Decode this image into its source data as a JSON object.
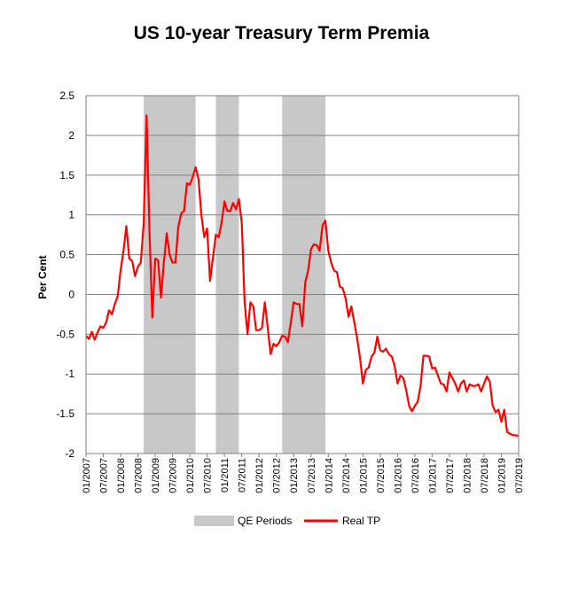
{
  "chart_data": {
    "type": "line",
    "title": "US 10-year Treasury Term Premia",
    "xlabel": "",
    "ylabel": "Per Cent",
    "ylim": [
      -2,
      2.5
    ],
    "yticks": [
      2.5,
      2,
      1.5,
      1,
      0.5,
      0,
      -0.5,
      -1,
      -1.5,
      -2
    ],
    "ytick_labels": [
      "2.5",
      "2",
      "1.5",
      "1",
      "0.5",
      "0",
      "-0.5",
      "-1",
      "-1.5",
      "-2"
    ],
    "xlim": [
      "2007-01",
      "2019-07"
    ],
    "xtick_labels": [
      "01/2007",
      "07/2007",
      "01/2008",
      "07/2008",
      "01/2009",
      "07/2009",
      "01/2010",
      "07/2010",
      "01/2011",
      "07/2011",
      "01/2012",
      "07/2012",
      "01/2013",
      "07/2013",
      "01/2014",
      "07/2014",
      "01/2015",
      "07/2015",
      "01/2016",
      "07/2016",
      "01/2017",
      "07/2017",
      "01/2018",
      "07/2018",
      "01/2019",
      "07/2019"
    ],
    "grid": true,
    "legend_position": "bottom",
    "colors": {
      "series": "#ff0000",
      "shading": "#c8c8c8"
    },
    "shaded_regions": {
      "name": "QE Periods",
      "ranges": [
        [
          "2008-09",
          "2010-03"
        ],
        [
          "2010-10",
          "2011-06"
        ],
        [
          "2012-09",
          "2013-12"
        ]
      ]
    },
    "series": [
      {
        "name": "Real TP",
        "points": [
          [
            "2007-01",
            -0.52
          ],
          [
            "2007-02",
            -0.56
          ],
          [
            "2007-03",
            -0.47
          ],
          [
            "2007-04",
            -0.57
          ],
          [
            "2007-05",
            -0.48
          ],
          [
            "2007-06",
            -0.4
          ],
          [
            "2007-07",
            -0.42
          ],
          [
            "2007-08",
            -0.35
          ],
          [
            "2007-09",
            -0.2
          ],
          [
            "2007-10",
            -0.25
          ],
          [
            "2007-11",
            -0.12
          ],
          [
            "2007-12",
            -0.02
          ],
          [
            "2008-01",
            0.3
          ],
          [
            "2008-02",
            0.55
          ],
          [
            "2008-03",
            0.86
          ],
          [
            "2008-04",
            0.45
          ],
          [
            "2008-05",
            0.42
          ],
          [
            "2008-06",
            0.23
          ],
          [
            "2008-07",
            0.35
          ],
          [
            "2008-08",
            0.4
          ],
          [
            "2008-09",
            0.9
          ],
          [
            "2008-10",
            2.25
          ],
          [
            "2008-11",
            0.8
          ],
          [
            "2008-12",
            -0.29
          ],
          [
            "2009-01",
            0.45
          ],
          [
            "2009-02",
            0.43
          ],
          [
            "2009-03",
            -0.04
          ],
          [
            "2009-04",
            0.4
          ],
          [
            "2009-05",
            0.77
          ],
          [
            "2009-06",
            0.5
          ],
          [
            "2009-07",
            0.4
          ],
          [
            "2009-08",
            0.4
          ],
          [
            "2009-09",
            0.85
          ],
          [
            "2009-10",
            1.02
          ],
          [
            "2009-11",
            1.05
          ],
          [
            "2009-12",
            1.4
          ],
          [
            "2010-01",
            1.38
          ],
          [
            "2010-02",
            1.48
          ],
          [
            "2010-03",
            1.6
          ],
          [
            "2010-04",
            1.45
          ],
          [
            "2010-05",
            1.0
          ],
          [
            "2010-06",
            0.72
          ],
          [
            "2010-07",
            0.83
          ],
          [
            "2010-08",
            0.17
          ],
          [
            "2010-09",
            0.45
          ],
          [
            "2010-10",
            0.75
          ],
          [
            "2010-11",
            0.72
          ],
          [
            "2010-12",
            0.9
          ],
          [
            "2011-01",
            1.17
          ],
          [
            "2011-02",
            1.05
          ],
          [
            "2011-03",
            1.05
          ],
          [
            "2011-04",
            1.15
          ],
          [
            "2011-05",
            1.07
          ],
          [
            "2011-06",
            1.2
          ],
          [
            "2011-07",
            0.9
          ],
          [
            "2011-08",
            -0.1
          ],
          [
            "2011-09",
            -0.5
          ],
          [
            "2011-10",
            -0.1
          ],
          [
            "2011-11",
            -0.15
          ],
          [
            "2011-12",
            -0.45
          ],
          [
            "2012-01",
            -0.45
          ],
          [
            "2012-02",
            -0.42
          ],
          [
            "2012-03",
            -0.1
          ],
          [
            "2012-04",
            -0.42
          ],
          [
            "2012-05",
            -0.75
          ],
          [
            "2012-06",
            -0.62
          ],
          [
            "2012-07",
            -0.65
          ],
          [
            "2012-08",
            -0.6
          ],
          [
            "2012-09",
            -0.52
          ],
          [
            "2012-10",
            -0.53
          ],
          [
            "2012-11",
            -0.6
          ],
          [
            "2012-12",
            -0.35
          ],
          [
            "2013-01",
            -0.1
          ],
          [
            "2013-02",
            -0.12
          ],
          [
            "2013-03",
            -0.12
          ],
          [
            "2013-04",
            -0.4
          ],
          [
            "2013-05",
            0.15
          ],
          [
            "2013-06",
            0.3
          ],
          [
            "2013-07",
            0.57
          ],
          [
            "2013-08",
            0.63
          ],
          [
            "2013-09",
            0.62
          ],
          [
            "2013-10",
            0.55
          ],
          [
            "2013-11",
            0.87
          ],
          [
            "2013-12",
            0.93
          ],
          [
            "2014-01",
            0.55
          ],
          [
            "2014-02",
            0.4
          ],
          [
            "2014-03",
            0.3
          ],
          [
            "2014-04",
            0.28
          ],
          [
            "2014-05",
            0.1
          ],
          [
            "2014-06",
            0.08
          ],
          [
            "2014-07",
            -0.05
          ],
          [
            "2014-08",
            -0.28
          ],
          [
            "2014-09",
            -0.15
          ],
          [
            "2014-10",
            -0.35
          ],
          [
            "2014-11",
            -0.55
          ],
          [
            "2014-12",
            -0.8
          ],
          [
            "2015-01",
            -1.12
          ],
          [
            "2015-02",
            -0.95
          ],
          [
            "2015-03",
            -0.92
          ],
          [
            "2015-04",
            -0.78
          ],
          [
            "2015-05",
            -0.73
          ],
          [
            "2015-06",
            -0.53
          ],
          [
            "2015-07",
            -0.7
          ],
          [
            "2015-08",
            -0.72
          ],
          [
            "2015-09",
            -0.68
          ],
          [
            "2015-10",
            -0.75
          ],
          [
            "2015-11",
            -0.78
          ],
          [
            "2015-12",
            -0.9
          ],
          [
            "2016-01",
            -1.12
          ],
          [
            "2016-02",
            -1.02
          ],
          [
            "2016-03",
            -1.05
          ],
          [
            "2016-04",
            -1.2
          ],
          [
            "2016-05",
            -1.4
          ],
          [
            "2016-06",
            -1.47
          ],
          [
            "2016-07",
            -1.4
          ],
          [
            "2016-08",
            -1.35
          ],
          [
            "2016-09",
            -1.15
          ],
          [
            "2016-10",
            -0.77
          ],
          [
            "2016-11",
            -0.77
          ],
          [
            "2016-12",
            -0.78
          ],
          [
            "2017-01",
            -0.93
          ],
          [
            "2017-02",
            -0.92
          ],
          [
            "2017-03",
            -1.02
          ],
          [
            "2017-04",
            -1.12
          ],
          [
            "2017-05",
            -1.13
          ],
          [
            "2017-06",
            -1.22
          ],
          [
            "2017-07",
            -0.98
          ],
          [
            "2017-08",
            -1.05
          ],
          [
            "2017-09",
            -1.12
          ],
          [
            "2017-10",
            -1.22
          ],
          [
            "2017-11",
            -1.12
          ],
          [
            "2017-12",
            -1.08
          ],
          [
            "2018-01",
            -1.22
          ],
          [
            "2018-02",
            -1.13
          ],
          [
            "2018-03",
            -1.15
          ],
          [
            "2018-04",
            -1.15
          ],
          [
            "2018-05",
            -1.13
          ],
          [
            "2018-06",
            -1.22
          ],
          [
            "2018-07",
            -1.12
          ],
          [
            "2018-08",
            -1.03
          ],
          [
            "2018-09",
            -1.1
          ],
          [
            "2018-10",
            -1.4
          ],
          [
            "2018-11",
            -1.48
          ],
          [
            "2018-12",
            -1.45
          ],
          [
            "2019-01",
            -1.6
          ],
          [
            "2019-02",
            -1.45
          ],
          [
            "2019-03",
            -1.73
          ],
          [
            "2019-04",
            -1.75
          ],
          [
            "2019-05",
            -1.77
          ],
          [
            "2019-06",
            -1.77
          ],
          [
            "2019-07",
            -1.78
          ]
        ]
      }
    ],
    "legend": [
      {
        "label": "QE Periods",
        "kind": "band"
      },
      {
        "label": "Real TP",
        "kind": "line"
      }
    ]
  }
}
